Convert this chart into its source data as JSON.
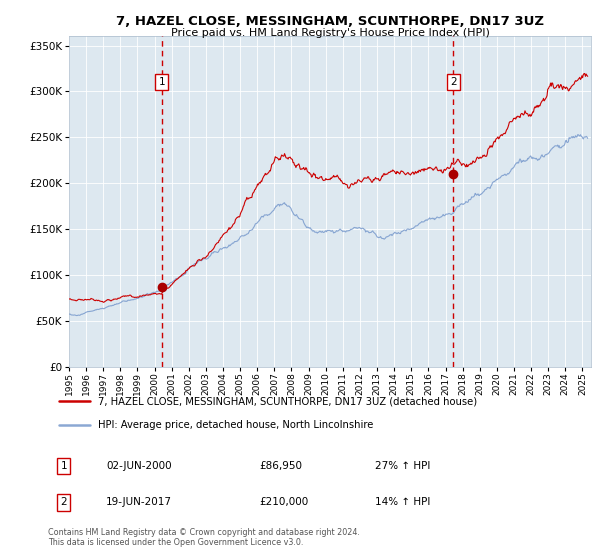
{
  "title": "7, HAZEL CLOSE, MESSINGHAM, SCUNTHORPE, DN17 3UZ",
  "subtitle": "Price paid vs. HM Land Registry's House Price Index (HPI)",
  "legend_line1": "7, HAZEL CLOSE, MESSINGHAM, SCUNTHORPE, DN17 3UZ (detached house)",
  "legend_line2": "HPI: Average price, detached house, North Lincolnshire",
  "footnote": "Contains HM Land Registry data © Crown copyright and database right 2024.\nThis data is licensed under the Open Government Licence v3.0.",
  "annotation1_label": "1",
  "annotation1_date": "02-JUN-2000",
  "annotation1_price": "£86,950",
  "annotation1_hpi": "27% ↑ HPI",
  "annotation2_label": "2",
  "annotation2_date": "19-JUN-2017",
  "annotation2_price": "£210,000",
  "annotation2_hpi": "14% ↑ HPI",
  "red_color": "#cc0000",
  "blue_color": "#7799cc",
  "bg_color": "#dde8f0",
  "vline_color": "#cc0000",
  "dot_color": "#aa0000",
  "ylim": [
    0,
    360000
  ],
  "yticks": [
    0,
    50000,
    100000,
    150000,
    200000,
    250000,
    300000,
    350000
  ],
  "xlim_start": 1995.0,
  "xlim_end": 2025.5,
  "sale1_x": 2000.42,
  "sale1_y": 86950,
  "sale2_x": 2017.46,
  "sale2_y": 210000
}
